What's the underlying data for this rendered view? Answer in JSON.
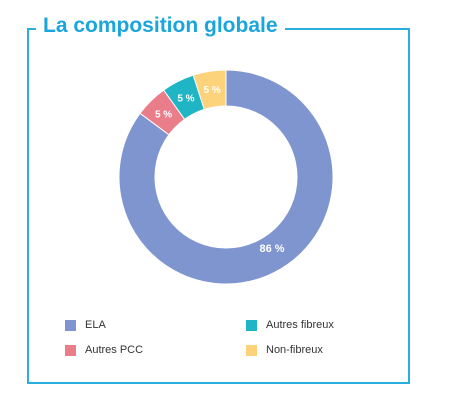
{
  "title": "La composition globale",
  "chart_data": {
    "type": "pie",
    "donut": true,
    "title": "La composition globale",
    "slices": [
      {
        "label": "ELA",
        "value": 86,
        "display": "86 %",
        "color": "#7e95cf"
      },
      {
        "label": "Autres PCC",
        "value": 5,
        "display": "5 %",
        "color": "#ea7d8a"
      },
      {
        "label": "Autres fibreux",
        "value": 5,
        "display": "5 %",
        "color": "#1fb5c4"
      },
      {
        "label": "Non-fibreux",
        "value": 5,
        "display": "5 %",
        "color": "#fcd27a"
      }
    ],
    "legend_position": "bottom"
  },
  "colors": {
    "frame": "#29aee0",
    "title": "#1aa6dc"
  }
}
